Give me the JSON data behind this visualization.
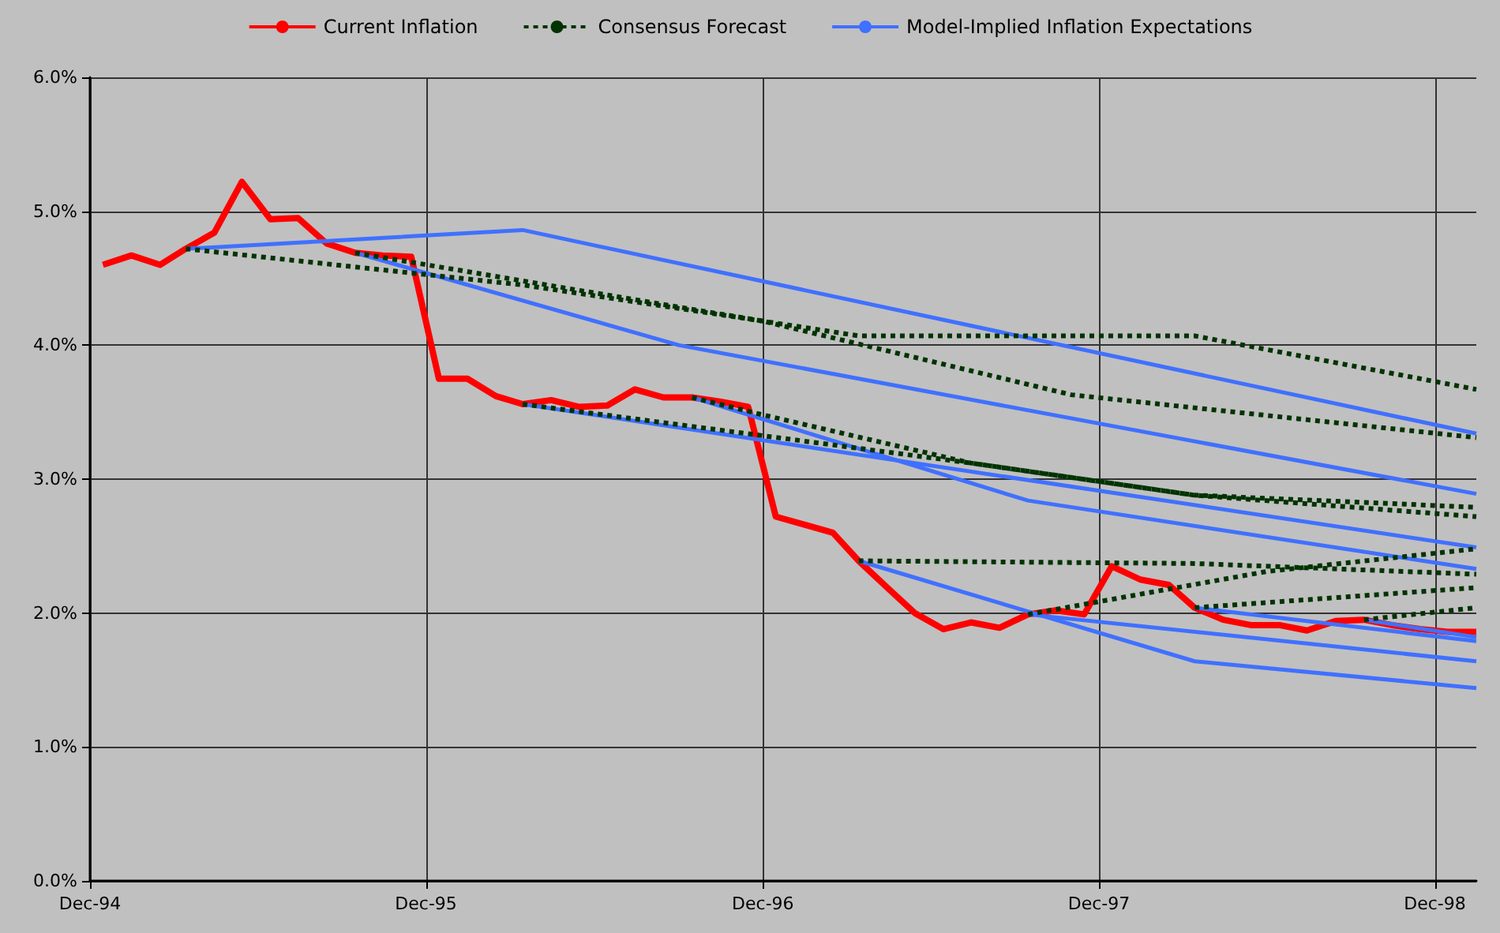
{
  "chart_data": {
    "type": "line",
    "xlim": [
      "1994-12-01",
      "1999-01-15"
    ],
    "xticks": [
      {
        "value": "1994-12-01",
        "label": "Dec-94"
      },
      {
        "value": "1995-12-01",
        "label": "Dec-95"
      },
      {
        "value": "1996-12-01",
        "label": "Dec-96"
      },
      {
        "value": "1997-12-01",
        "label": "Dec-97"
      },
      {
        "value": "1998-12-01",
        "label": "Dec-98"
      }
    ],
    "ylim": [
      0,
      6
    ],
    "yticks": [
      {
        "value": 0,
        "label": "0.0%"
      },
      {
        "value": 1,
        "label": "1.0%"
      },
      {
        "value": 2,
        "label": "2.0%"
      },
      {
        "value": 3,
        "label": "3.0%"
      },
      {
        "value": 4,
        "label": "4.0%"
      },
      {
        "value": 5,
        "label": "5.0%"
      },
      {
        "value": 6,
        "label": "6.0%"
      }
    ],
    "grid": true,
    "legend": "top",
    "marker": "none",
    "series": [
      {
        "name": "Current Inflation",
        "color": "#ff0000",
        "line_style": "solid",
        "x": [
          "1994-12-15",
          "1995-01-15",
          "1995-02-15",
          "1995-03-15",
          "1995-04-15",
          "1995-05-15",
          "1995-06-15",
          "1995-07-15",
          "1995-08-15",
          "1995-09-15",
          "1995-10-15",
          "1995-11-15",
          "1995-12-15",
          "1996-01-15",
          "1996-02-15",
          "1996-03-15",
          "1996-04-15",
          "1996-05-15",
          "1996-06-15",
          "1996-07-15",
          "1996-08-15",
          "1996-09-15",
          "1996-10-15",
          "1996-11-15",
          "1996-12-15",
          "1997-01-15",
          "1997-02-15",
          "1997-03-15",
          "1997-04-15",
          "1997-05-15",
          "1997-06-15",
          "1997-07-15",
          "1997-08-15",
          "1997-09-15",
          "1997-10-15",
          "1997-11-15",
          "1997-12-15",
          "1998-01-15",
          "1998-02-15",
          "1998-03-15",
          "1998-04-15",
          "1998-05-15",
          "1998-06-15",
          "1998-07-15",
          "1998-08-15",
          "1998-09-15",
          "1998-10-15",
          "1998-11-15",
          "1998-12-15",
          "1999-01-15"
        ],
        "values": [
          4.6,
          4.67,
          4.6,
          4.72,
          4.84,
          5.22,
          4.94,
          4.95,
          4.76,
          4.69,
          4.67,
          4.66,
          3.75,
          3.75,
          3.62,
          3.56,
          3.59,
          3.54,
          3.55,
          3.67,
          3.61,
          3.61,
          3.58,
          3.54,
          2.72,
          2.66,
          2.6,
          2.39,
          2.19,
          2.0,
          1.88,
          1.93,
          1.89,
          1.99,
          2.02,
          1.99,
          2.35,
          2.25,
          2.21,
          2.04,
          1.95,
          1.91,
          1.91,
          1.87,
          1.94,
          1.95,
          1.91,
          1.88,
          1.86,
          1.86
        ]
      },
      {
        "name": "Consensus Forecast",
        "color": "#003300",
        "line_style": "dashed",
        "x": [
          "1995-03-15",
          "1996-03-15",
          "1996-12-01",
          "1997-03-15",
          "1998-03-15",
          "1999-01-15"
        ],
        "values": [
          4.72,
          4.45,
          4.18,
          4.07,
          4.07,
          3.67
        ]
      },
      {
        "color": "#003300",
        "line_style": "dashed",
        "x": [
          "1995-09-15",
          "1996-12-01",
          "1997-11-01",
          "1999-01-15"
        ],
        "values": [
          4.69,
          4.18,
          3.63,
          3.31
        ]
      },
      {
        "color": "#003300",
        "line_style": "dashed",
        "x": [
          "1996-03-15",
          "1997-07-15",
          "1998-03-15",
          "1999-01-15"
        ],
        "values": [
          3.56,
          3.12,
          2.88,
          2.72
        ]
      },
      {
        "color": "#003300",
        "line_style": "dashed",
        "x": [
          "1996-09-15",
          "1996-12-01",
          "1997-07-15",
          "1998-03-15",
          "1999-01-15"
        ],
        "values": [
          3.61,
          3.48,
          3.12,
          2.88,
          2.79
        ]
      },
      {
        "color": "#003300",
        "line_style": "dashed",
        "x": [
          "1997-03-15",
          "1998-03-15",
          "1999-01-15"
        ],
        "values": [
          2.39,
          2.37,
          2.29
        ]
      },
      {
        "color": "#003300",
        "line_style": "dashed",
        "x": [
          "1997-09-15",
          "1998-06-01",
          "1999-01-15"
        ],
        "values": [
          1.99,
          2.31,
          2.48
        ]
      },
      {
        "color": "#003300",
        "line_style": "dashed",
        "x": [
          "1998-03-15",
          "1999-01-15"
        ],
        "values": [
          2.04,
          2.19
        ]
      },
      {
        "color": "#003300",
        "line_style": "dashed",
        "x": [
          "1998-09-15",
          "1999-01-15"
        ],
        "values": [
          1.95,
          2.04
        ]
      },
      {
        "name": "Model-Implied Inflation Expectations",
        "color": "#4070ff",
        "line_style": "solid",
        "x": [
          "1995-03-15",
          "1996-03-15",
          "1999-01-15"
        ],
        "values": [
          4.72,
          4.86,
          3.34
        ]
      },
      {
        "color": "#4070ff",
        "line_style": "solid",
        "x": [
          "1995-09-15",
          "1996-09-01",
          "1999-01-15"
        ],
        "values": [
          4.69,
          4.0,
          2.89
        ]
      },
      {
        "color": "#4070ff",
        "line_style": "solid",
        "x": [
          "1996-03-15",
          "1999-01-15"
        ],
        "values": [
          3.56,
          2.49
        ]
      },
      {
        "color": "#4070ff",
        "line_style": "solid",
        "x": [
          "1996-09-15",
          "1997-09-15",
          "1999-01-15"
        ],
        "values": [
          3.61,
          2.84,
          2.33
        ]
      },
      {
        "color": "#4070ff",
        "line_style": "solid",
        "x": [
          "1997-03-15",
          "1998-03-15",
          "1999-01-15"
        ],
        "values": [
          2.39,
          1.64,
          1.44
        ]
      },
      {
        "color": "#4070ff",
        "line_style": "solid",
        "x": [
          "1997-09-15",
          "1999-01-15"
        ],
        "values": [
          1.99,
          1.64
        ]
      },
      {
        "color": "#4070ff",
        "line_style": "solid",
        "x": [
          "1998-03-15",
          "1999-01-15"
        ],
        "values": [
          2.04,
          1.79
        ]
      },
      {
        "color": "#4070ff",
        "line_style": "solid",
        "x": [
          "1998-09-15",
          "1999-01-15"
        ],
        "values": [
          1.95,
          1.82
        ]
      }
    ]
  }
}
